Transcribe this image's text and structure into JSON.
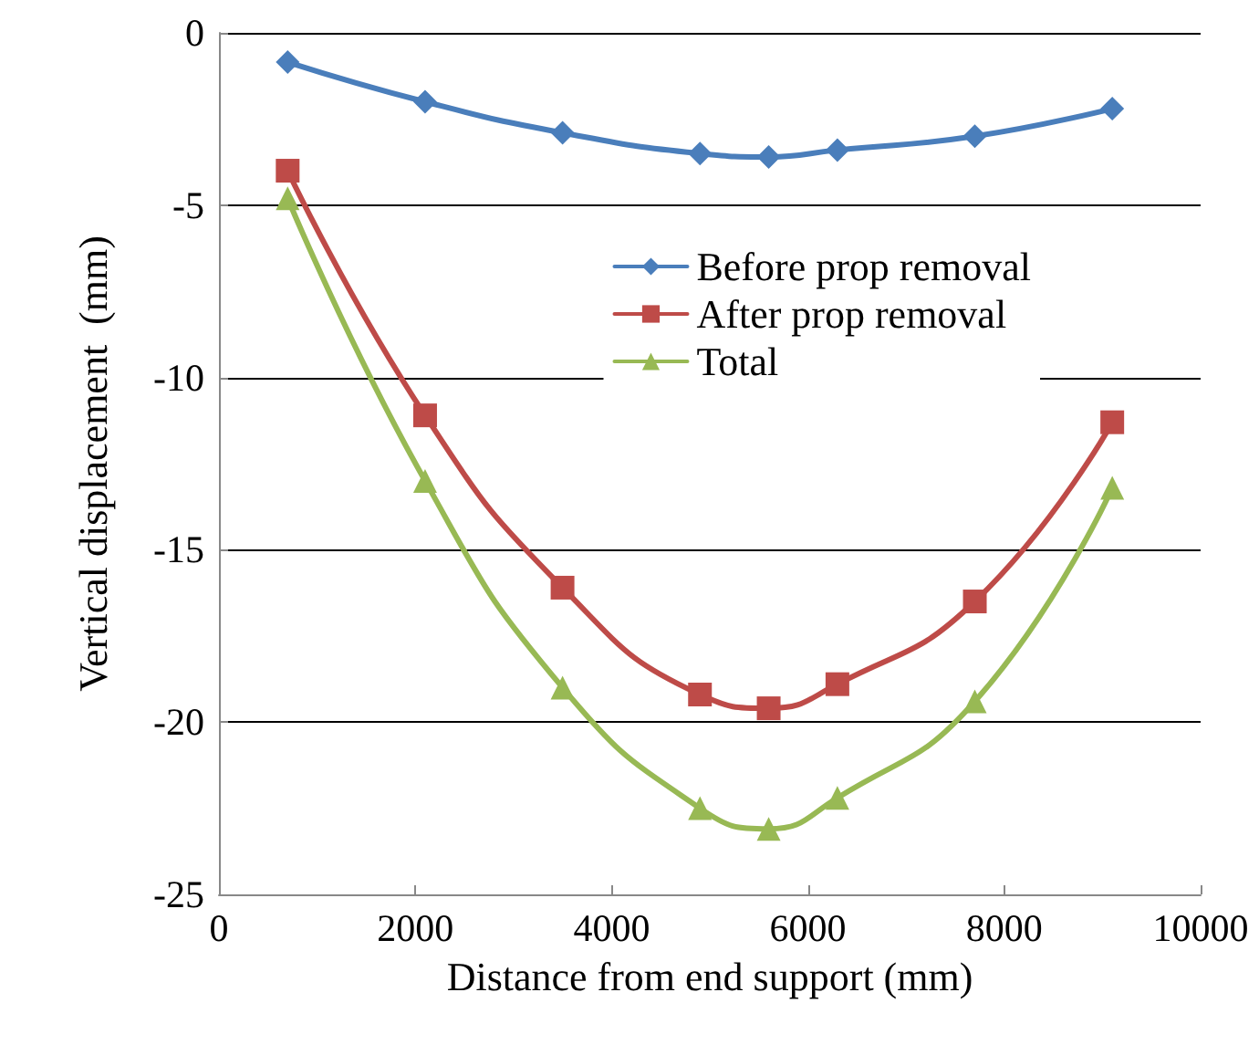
{
  "chart_data": {
    "type": "line",
    "xlabel": "Distance from end support (mm)",
    "ylabel": "Vertical displacement  (mm)",
    "x": [
      700,
      2100,
      3500,
      4900,
      5600,
      6300,
      7700,
      9100
    ],
    "series": [
      {
        "name": "Before prop removal",
        "color": "#4a7ebb",
        "marker": "diamond",
        "values": [
          -0.85,
          -2.0,
          -2.9,
          -3.5,
          -3.6,
          -3.4,
          -3.0,
          -2.2
        ]
      },
      {
        "name": "After prop removal",
        "color": "#be4b48",
        "marker": "square",
        "values": [
          -4.0,
          -11.1,
          -16.1,
          -19.2,
          -19.6,
          -18.9,
          -16.5,
          -11.3
        ]
      },
      {
        "name": "Total",
        "color": "#98b954",
        "marker": "triangle",
        "values": [
          -4.8,
          -13.0,
          -19.0,
          -22.5,
          -23.1,
          -22.2,
          -19.4,
          -13.2
        ]
      }
    ],
    "xlim": [
      0,
      10000
    ],
    "xticks": [
      0,
      2000,
      4000,
      6000,
      8000,
      10000
    ],
    "ylim": [
      -25,
      0
    ],
    "yticks": [
      -25,
      -20,
      -15,
      -10,
      -5,
      0
    ],
    "grid": "y",
    "legend": "top right",
    "line_style": "solid"
  }
}
